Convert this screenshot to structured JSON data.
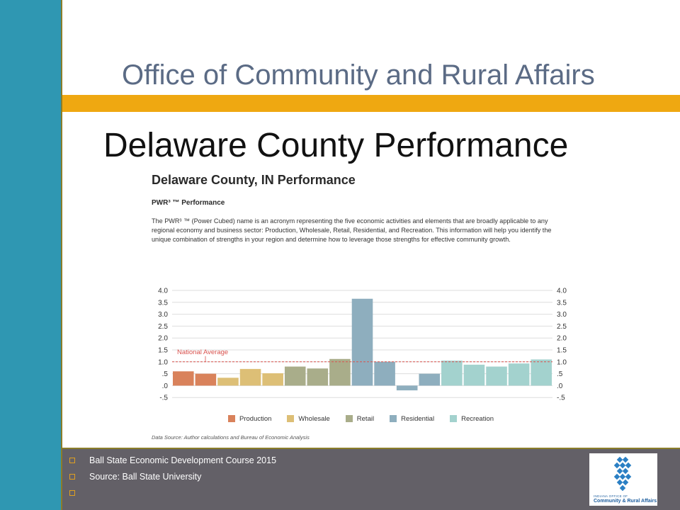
{
  "header": {
    "title": "Office of Community and Rural Affairs"
  },
  "slide": {
    "title": "Delaware County Performance"
  },
  "report": {
    "title": "Delaware County, IN Performance",
    "subtitle": "PWR³ ™ Performance",
    "description": "The PWR³ ™ (Power Cubed) name is an acronym representing the five economic activities and elements that are broadly applicable to any regional economy and business sector: Production, Wholesale, Retail, Residential, and Recreation. This information will help you identify the unique combination of strengths in your region and determine how to leverage those strengths for effective community growth.",
    "data_source": "Data Source: Author calculations and Bureau of Economic Analysis"
  },
  "chart_data": {
    "type": "bar",
    "title": "",
    "xlabel": "",
    "ylabel": "",
    "ylim": [
      -0.5,
      4.0
    ],
    "yticks": [
      "4.0",
      "3.5",
      "3.0",
      "2.5",
      "2.0",
      "1.5",
      "1.0",
      ".5",
      ".0",
      "-.5"
    ],
    "reference_line": {
      "label": "National Average",
      "value": 1.0,
      "color": "#d9534f"
    },
    "categories": [
      "Production",
      "Wholesale",
      "Retail",
      "Residential",
      "Recreation"
    ],
    "colors": {
      "Production": "#d9825b",
      "Wholesale": "#ddbf76",
      "Retail": "#a9ad8a",
      "Residential": "#8eaebe",
      "Recreation": "#a3d2ce"
    },
    "bars": [
      {
        "category": "Production",
        "value": 0.6
      },
      {
        "category": "Production",
        "value": 0.5
      },
      {
        "category": "Wholesale",
        "value": 0.33
      },
      {
        "category": "Wholesale",
        "value": 0.7
      },
      {
        "category": "Wholesale",
        "value": 0.52
      },
      {
        "category": "Retail",
        "value": 0.8
      },
      {
        "category": "Retail",
        "value": 0.72
      },
      {
        "category": "Retail",
        "value": 1.12
      },
      {
        "category": "Residential",
        "value": 3.65
      },
      {
        "category": "Residential",
        "value": 1.0
      },
      {
        "category": "Residential",
        "value": -0.2
      },
      {
        "category": "Residential",
        "value": 0.5
      },
      {
        "category": "Recreation",
        "value": 1.05
      },
      {
        "category": "Recreation",
        "value": 0.88
      },
      {
        "category": "Recreation",
        "value": 0.8
      },
      {
        "category": "Recreation",
        "value": 0.93
      },
      {
        "category": "Recreation",
        "value": 1.1
      }
    ],
    "legend": [
      "Production",
      "Wholesale",
      "Retail",
      "Residential",
      "Recreation"
    ],
    "legend_position": "bottom",
    "grid": true
  },
  "footer": {
    "items": [
      "Ball State Economic Development Course 2015",
      "Source: Ball State University",
      ""
    ],
    "logo_line1": "INDIANA OFFICE OF",
    "logo_line2": "Community & Rural Affairs"
  }
}
